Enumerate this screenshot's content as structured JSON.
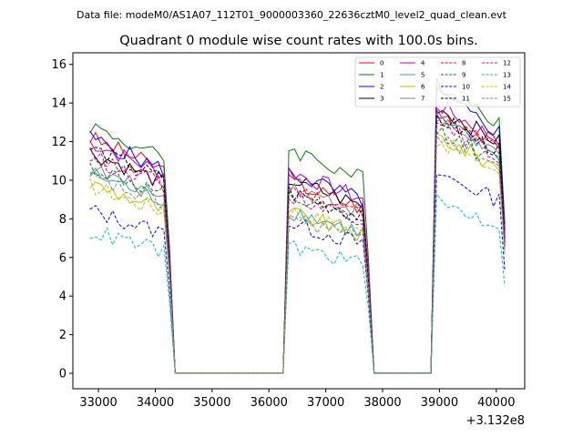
{
  "chart_data": {
    "type": "line",
    "suptitle": "Data file: modeM0/AS1A07_112T01_9000003360_22636cztM0_level2_quad_clean.evt",
    "title": "Quadrant 0 module wise count rates with 100.0s bins.",
    "xlabel": "",
    "ylabel": "",
    "x_offset_text": "+3.132e8",
    "xlim": [
      32550,
      40500
    ],
    "ylim": [
      -0.8,
      16.6
    ],
    "xticks": [
      33000,
      34000,
      35000,
      36000,
      37000,
      38000,
      39000,
      40000
    ],
    "xtick_labels": [
      "33000",
      "34000",
      "35000",
      "36000",
      "37000",
      "38000",
      "39000",
      "40000"
    ],
    "yticks": [
      0,
      2,
      4,
      6,
      8,
      10,
      12,
      14,
      16
    ],
    "ytick_labels": [
      "0",
      "2",
      "4",
      "6",
      "8",
      "10",
      "12",
      "14",
      "16"
    ],
    "legend_position": "upper-right",
    "segments": [
      {
        "start": 32850,
        "end": 34250
      },
      {
        "start": 36350,
        "end": 37750
      },
      {
        "start": 38950,
        "end": 40150
      }
    ],
    "series": [
      {
        "name": "0",
        "color": "#ff0000",
        "dash": "solid",
        "levels": [
          11.3,
          9.2,
          12.6
        ]
      },
      {
        "name": "1",
        "color": "#008000",
        "dash": "solid",
        "levels": [
          11.9,
          10.8,
          14.0
        ]
      },
      {
        "name": "2",
        "color": "#0000ff",
        "dash": "solid",
        "levels": [
          11.3,
          9.6,
          13.4
        ]
      },
      {
        "name": "3",
        "color": "#000000",
        "dash": "solid",
        "levels": [
          10.6,
          9.3,
          12.8
        ]
      },
      {
        "name": "4",
        "color": "#bf00bf",
        "dash": "solid",
        "levels": [
          11.1,
          9.7,
          12.9
        ]
      },
      {
        "name": "5",
        "color": "#20b2aa",
        "dash": "solid",
        "levels": [
          9.6,
          7.8,
          12.1
        ]
      },
      {
        "name": "6",
        "color": "#bfbf00",
        "dash": "solid",
        "levels": [
          9.1,
          7.7,
          11.4
        ]
      },
      {
        "name": "7",
        "color": "#808080",
        "dash": "solid",
        "levels": [
          9.8,
          9.0,
          12.2
        ]
      },
      {
        "name": "8",
        "color": "#ff0000",
        "dash": "dashed",
        "levels": [
          10.5,
          8.9,
          12.4
        ]
      },
      {
        "name": "9",
        "color": "#008000",
        "dash": "dashed",
        "levels": [
          9.9,
          8.4,
          11.7
        ]
      },
      {
        "name": "10",
        "color": "#0000ff",
        "dash": "dashed",
        "levels": [
          7.8,
          7.2,
          9.6
        ]
      },
      {
        "name": "11",
        "color": "#000000",
        "dash": "dashed",
        "levels": [
          10.8,
          8.7,
          12.3
        ]
      },
      {
        "name": "12",
        "color": "#bf00bf",
        "dash": "dashed",
        "levels": [
          10.4,
          8.6,
          12.0
        ]
      },
      {
        "name": "13",
        "color": "#00bfbf",
        "dash": "dashed",
        "levels": [
          6.8,
          6.1,
          8.2
        ]
      },
      {
        "name": "14",
        "color": "#bfbf00",
        "dash": "dashed",
        "levels": [
          9.0,
          7.8,
          11.2
        ]
      },
      {
        "name": "15",
        "color": "#808080",
        "dash": "dashed",
        "levels": [
          9.4,
          7.5,
          11.5
        ]
      }
    ]
  }
}
